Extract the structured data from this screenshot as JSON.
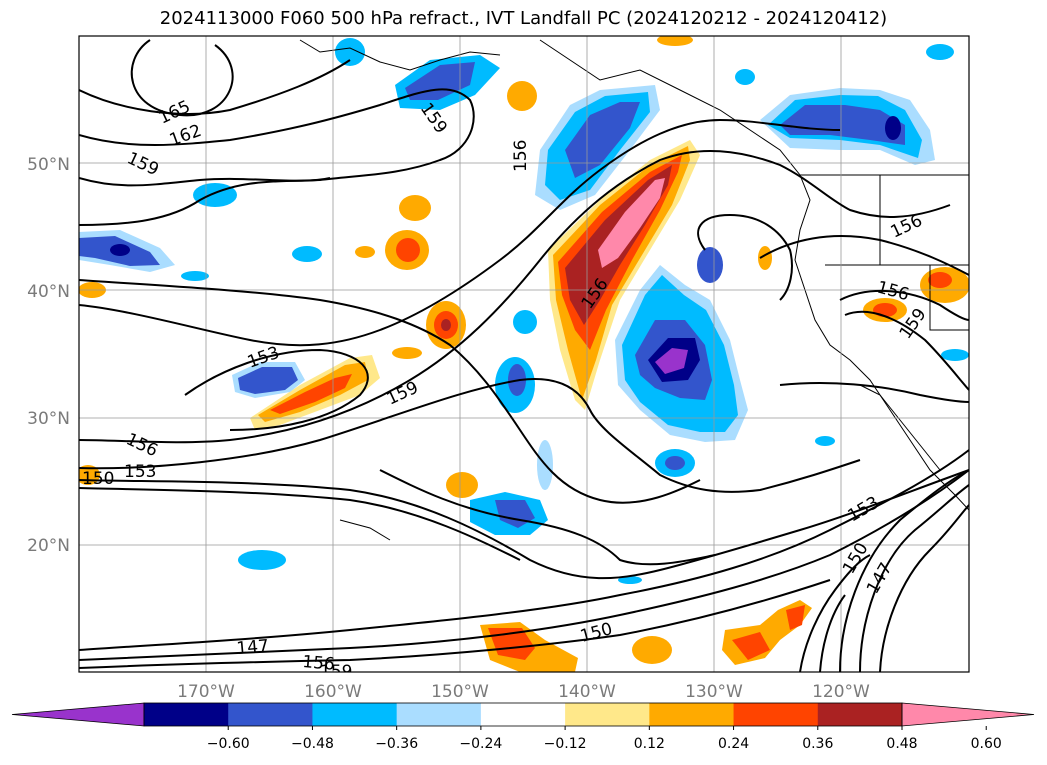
{
  "title": "2024113000 F060 500 hPa refract., IVT Landfall PC (2024120212 - 2024120412)",
  "lat_labels": [
    "50°N",
    "40°N",
    "30°N",
    "20°N"
  ],
  "lon_labels": [
    "170°W",
    "160°W",
    "150°W",
    "140°W",
    "130°W",
    "120°W"
  ],
  "colorbar": {
    "colors": [
      "#9933cc",
      "#000088",
      "#3355cc",
      "#00bbff",
      "#aaddff",
      "#ffffff",
      "#ffe88a",
      "#ffaa00",
      "#ff4400",
      "#aa2222",
      "#ff88aa"
    ],
    "tick_labels": [
      "−0.60",
      "−0.48",
      "−0.36",
      "−0.24",
      "−0.12",
      "0.12",
      "0.24",
      "0.36",
      "0.48",
      "0.60"
    ]
  },
  "contour_labels": [
    "165",
    "162",
    "159",
    "159",
    "156",
    "156",
    "156",
    "156",
    "159",
    "153",
    "159",
    "156",
    "153",
    "150",
    "153",
    "150",
    "147",
    "150",
    "147",
    "156",
    "159"
  ]
}
